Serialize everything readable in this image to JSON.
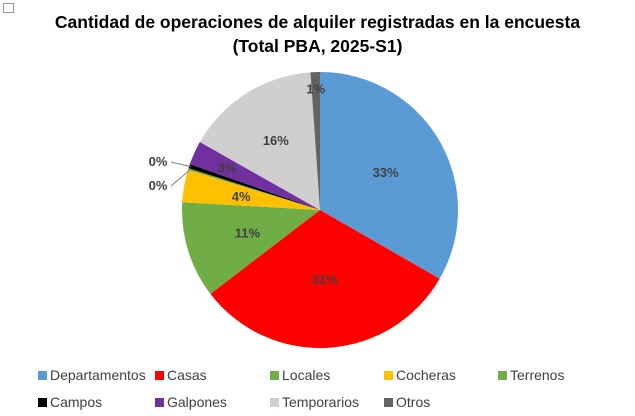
{
  "chart_data": {
    "type": "pie",
    "title": "Cantidad de operaciones de alquiler registradas en la encuesta",
    "subtitle": "(Total PBA, 2025-S1)",
    "legend_position": "bottom",
    "slices": [
      {
        "name": "Departamentos",
        "value": 33.3,
        "label": "33%",
        "color": "#5B9BD5"
      },
      {
        "name": "Casas",
        "value": 31.3,
        "label": "31%",
        "color": "#FF0000"
      },
      {
        "name": "Locales",
        "value": 11.3,
        "label": "11%",
        "color": "#70AD47"
      },
      {
        "name": "Cocheras",
        "value": 3.8,
        "label": "4%",
        "color": "#FFC000"
      },
      {
        "name": "Terrenos",
        "value": 0.2,
        "label": "0%",
        "color": "#70AD47"
      },
      {
        "name": "Campos",
        "value": 0.5,
        "label": "0%",
        "color": "#000000"
      },
      {
        "name": "Galpones",
        "value": 2.8,
        "label": "3%",
        "color": "#7030A0"
      },
      {
        "name": "Temporarios",
        "value": 15.7,
        "label": "16%",
        "color": "#D0CECE"
      },
      {
        "name": "Otros",
        "value": 1.1,
        "label": "1%",
        "color": "#636363"
      }
    ]
  }
}
